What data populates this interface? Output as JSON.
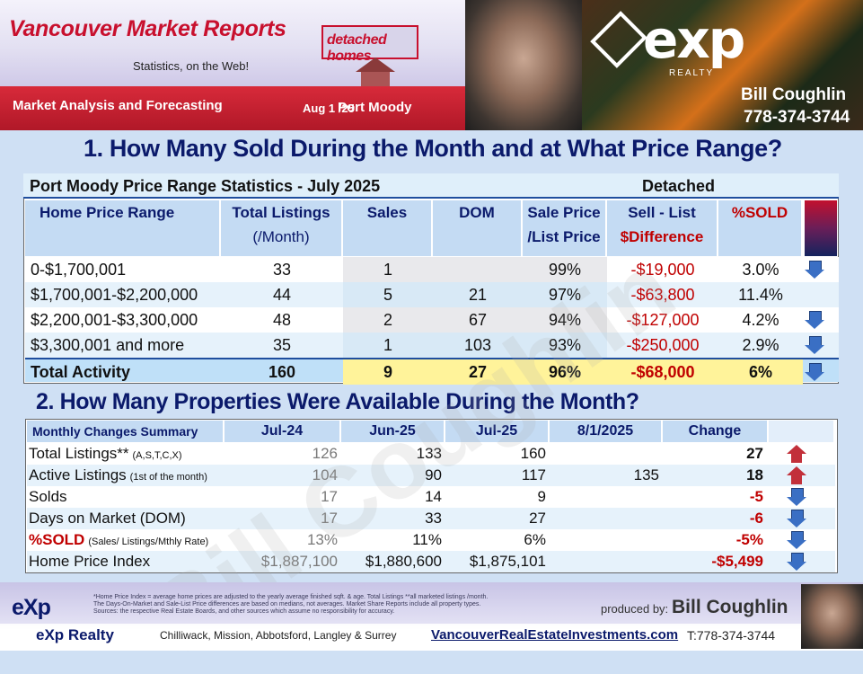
{
  "header": {
    "title": "Vancouver Market Reports",
    "badge": "detached homes",
    "tagline": "Statistics, on the Web!",
    "section_label": "Market Analysis and Forecasting",
    "date": "Aug 1 /25",
    "city": "Port Moody",
    "brand": "exp",
    "brand_sub": "REALTY",
    "agent_name": "Bill Coughlin",
    "agent_phone": "778-374-3744"
  },
  "section1": {
    "title": "1. How Many Sold During the Month and at What Price Range?",
    "caption": "Port Moody Price Range Statistics  - July  2025",
    "type": "Detached",
    "columns": {
      "price_range": "Home Price Range",
      "listings_1": "Total  Listings",
      "listings_2": "(/Month)",
      "sales": "Sales",
      "dom": "DOM",
      "ratio_1": "Sale Price",
      "ratio_2": "/List Price",
      "diff_1": "Sell - List",
      "diff_2": "$Difference",
      "sold": "%SOLD"
    },
    "rows": [
      {
        "range": "0-$1,700,001",
        "listings": "33",
        "sales": "1",
        "dom": "",
        "ratio": "99%",
        "diff": "-$19,000",
        "sold": "3.0%",
        "trend": "down"
      },
      {
        "range": "$1,700,001-$2,200,000",
        "listings": "44",
        "sales": "5",
        "dom": "21",
        "ratio": "97%",
        "diff": "-$63,800",
        "sold": "11.4%",
        "trend": ""
      },
      {
        "range": "$2,200,001-$3,300,000",
        "listings": "48",
        "sales": "2",
        "dom": "67",
        "ratio": "94%",
        "diff": "-$127,000",
        "sold": "4.2%",
        "trend": "down"
      },
      {
        "range": "$3,300,001 and more",
        "listings": "35",
        "sales": "1",
        "dom": "103",
        "ratio": "93%",
        "diff": "-$250,000",
        "sold": "2.9%",
        "trend": "down"
      }
    ],
    "total": {
      "range": "Total Activity",
      "listings": "160",
      "sales": "9",
      "dom": "27",
      "ratio": "96%",
      "diff": "-$68,000",
      "sold": "6%",
      "trend": "down"
    }
  },
  "section2": {
    "title": "2. How Many Properties Were Available During the Month?",
    "columns": {
      "label": "Monthly Changes Summary",
      "c1": "Jul-24",
      "c2": "Jun-25",
      "c3": "Jul-25",
      "c4": "8/1/2025",
      "c5": "Change"
    },
    "rows": [
      {
        "label": "Total Listings**",
        "note": "(A,S,T,C,X)",
        "c1": "126",
        "c2": "133",
        "c3": "160",
        "c4": "",
        "change": "27",
        "trend": "up"
      },
      {
        "label": "Active Listings",
        "note": "(1st of the month)",
        "c1": "104",
        "c2": "90",
        "c3": "117",
        "c4": "135",
        "change": "18",
        "trend": "up"
      },
      {
        "label": "Solds",
        "note": "",
        "c1": "17",
        "c2": "14",
        "c3": "9",
        "c4": "",
        "change": "-5",
        "trend": "down"
      },
      {
        "label": "Days on Market (DOM)",
        "note": "",
        "c1": "17",
        "c2": "33",
        "c3": "27",
        "c4": "",
        "change": "-6",
        "trend": "down"
      },
      {
        "label": "%SOLD",
        "note": "(Sales/ Listings/Mthly Rate)",
        "c1": "13%",
        "c2": "11%",
        "c3": "6%",
        "c4": "",
        "change": "-5%",
        "trend": "down"
      },
      {
        "label": "Home Price Index",
        "note": "",
        "c1": "$1,887,100",
        "c2": "$1,880,600",
        "c3": "$1,875,101",
        "c4": "",
        "change": "-$5,499",
        "trend": "down"
      }
    ]
  },
  "footer": {
    "fine_print_1": "*Home Price Index = average home prices are adjusted to the yearly average finished sqft. & age.  Total Listings **all marketed listings /month.",
    "fine_print_2": "The Days-On-Market and Sale-List Price differences are based on medians, not averages. Market Share Reports include all property types.",
    "fine_print_3": "Sources:  the respective Real Estate Boards, and other sources which assume no responsibility for accuracy.",
    "produced_by": "produced by:",
    "producer": "Bill Coughlin",
    "exp": "eXp",
    "exp_realty": "eXp Realty",
    "cities": "Chilliwack, Mission, Abbotsford, Langley & Surrey",
    "website": "VancouverRealEstateInvestments.com",
    "tel": "T:778-374-3744"
  },
  "watermark": "Bill Coughlin"
}
